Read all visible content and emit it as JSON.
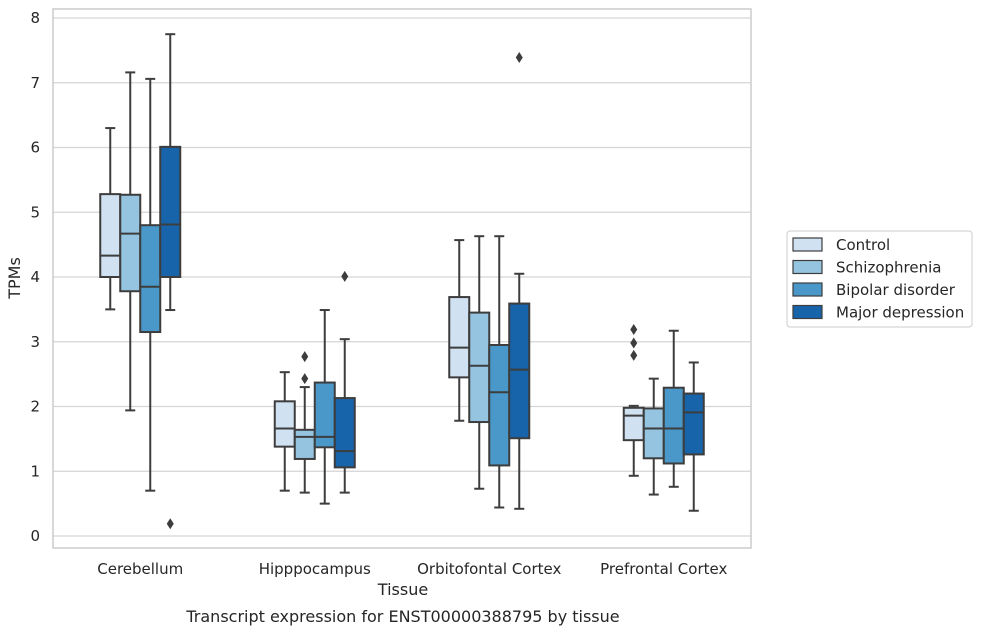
{
  "chart_data": {
    "type": "box",
    "title": "",
    "caption": "Transcript expression for ENST00000388795 by tissue",
    "xlabel": "Tissue",
    "ylabel": "TPMs",
    "ylim": [
      -0.2,
      8.15
    ],
    "yticks": [
      0,
      1,
      2,
      3,
      4,
      5,
      6,
      7,
      8
    ],
    "grid": "horizontal",
    "legend_position": "right",
    "categories": [
      "Cerebellum",
      "Hipppocampus",
      "Orbitofontal Cortex",
      "Prefrontal Cortex"
    ],
    "series": [
      {
        "name": "Control",
        "color": "#d0e1f2",
        "boxes": [
          {
            "whisker_low": 3.5,
            "q1": 4.0,
            "median": 4.33,
            "q3": 5.28,
            "whisker_high": 6.3,
            "outliers": []
          },
          {
            "whisker_low": 0.7,
            "q1": 1.38,
            "median": 1.66,
            "q3": 2.08,
            "whisker_high": 2.53,
            "outliers": []
          },
          {
            "whisker_low": 1.78,
            "q1": 2.45,
            "median": 2.91,
            "q3": 3.69,
            "whisker_high": 4.57,
            "outliers": []
          },
          {
            "whisker_low": 0.93,
            "q1": 1.48,
            "median": 1.86,
            "q3": 1.98,
            "whisker_high": 2.01,
            "outliers": [
              2.79,
              2.98,
              3.19
            ]
          }
        ]
      },
      {
        "name": "Schizophrenia",
        "color": "#94c4df",
        "boxes": [
          {
            "whisker_low": 1.94,
            "q1": 3.78,
            "median": 4.67,
            "q3": 5.27,
            "whisker_high": 7.16,
            "outliers": []
          },
          {
            "whisker_low": 0.67,
            "q1": 1.19,
            "median": 1.53,
            "q3": 1.64,
            "whisker_high": 2.3,
            "outliers": [
              2.43,
              2.77
            ]
          },
          {
            "whisker_low": 0.73,
            "q1": 1.76,
            "median": 2.63,
            "q3": 3.45,
            "whisker_high": 4.63,
            "outliers": []
          },
          {
            "whisker_low": 0.64,
            "q1": 1.2,
            "median": 1.66,
            "q3": 1.97,
            "whisker_high": 2.43,
            "outliers": []
          }
        ]
      },
      {
        "name": "Bipolar disorder",
        "color": "#4a98c9",
        "boxes": [
          {
            "whisker_low": 0.7,
            "q1": 3.15,
            "median": 3.85,
            "q3": 4.8,
            "whisker_high": 7.06,
            "outliers": []
          },
          {
            "whisker_low": 0.5,
            "q1": 1.37,
            "median": 1.53,
            "q3": 2.37,
            "whisker_high": 3.49,
            "outliers": []
          },
          {
            "whisker_low": 0.44,
            "q1": 1.09,
            "median": 2.22,
            "q3": 2.95,
            "whisker_high": 4.63,
            "outliers": []
          },
          {
            "whisker_low": 0.76,
            "q1": 1.12,
            "median": 1.66,
            "q3": 2.29,
            "whisker_high": 3.17,
            "outliers": []
          }
        ]
      },
      {
        "name": "Major depression",
        "color": "#1764ab",
        "boxes": [
          {
            "whisker_low": 3.49,
            "q1": 4.0,
            "median": 4.81,
            "q3": 6.01,
            "whisker_high": 7.75,
            "outliers": [
              0.19
            ]
          },
          {
            "whisker_low": 0.67,
            "q1": 1.06,
            "median": 1.31,
            "q3": 2.13,
            "whisker_high": 3.04,
            "outliers": [
              4.01
            ]
          },
          {
            "whisker_low": 0.42,
            "q1": 1.51,
            "median": 2.57,
            "q3": 3.59,
            "whisker_high": 4.05,
            "outliers": [
              7.39
            ]
          },
          {
            "whisker_low": 0.39,
            "q1": 1.26,
            "median": 1.91,
            "q3": 2.2,
            "whisker_high": 2.68,
            "outliers": []
          }
        ]
      }
    ]
  }
}
